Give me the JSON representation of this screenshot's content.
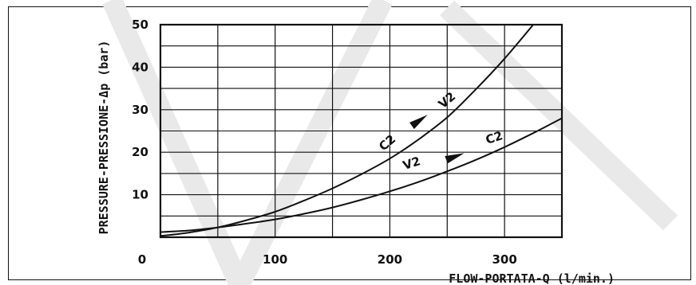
{
  "chart_data": {
    "type": "line",
    "xlabel": "FLOW-PORTATA-Q  (l/min.)",
    "ylabel": "PRESSURE-PRESSIONE-Δp (bar)",
    "xlim": [
      0,
      350
    ],
    "ylim": [
      0,
      50
    ],
    "x_major_ticks": [
      0,
      100,
      200,
      300
    ],
    "y_major_ticks": [
      10,
      20,
      30,
      40,
      50
    ],
    "x_tick_labels": [
      "0",
      "100",
      "200",
      "300"
    ],
    "y_tick_labels": [
      "10",
      "20",
      "30",
      "40",
      "50"
    ],
    "grid": true,
    "series": [
      {
        "name": "C2 ▶ V2",
        "start_label": "C2",
        "end_label": "V2",
        "x": [
          0,
          25,
          50,
          75,
          100,
          125,
          150,
          175,
          200,
          225,
          250,
          275,
          300,
          325
        ],
        "y": [
          0.3,
          1.1,
          2.3,
          4.0,
          6.0,
          8.6,
          11.5,
          14.8,
          18.5,
          23.0,
          28.2,
          34.8,
          42.0,
          50.0
        ]
      },
      {
        "name": "V2 ▶ C2",
        "start_label": "V2",
        "end_label": "C2",
        "x": [
          0,
          25,
          50,
          75,
          100,
          125,
          150,
          175,
          200,
          225,
          250,
          275,
          300,
          325,
          350
        ],
        "y": [
          1.2,
          1.6,
          2.3,
          3.2,
          4.2,
          5.5,
          7.0,
          8.8,
          10.8,
          13.0,
          15.5,
          18.2,
          21.2,
          24.5,
          28.0
        ]
      }
    ]
  }
}
